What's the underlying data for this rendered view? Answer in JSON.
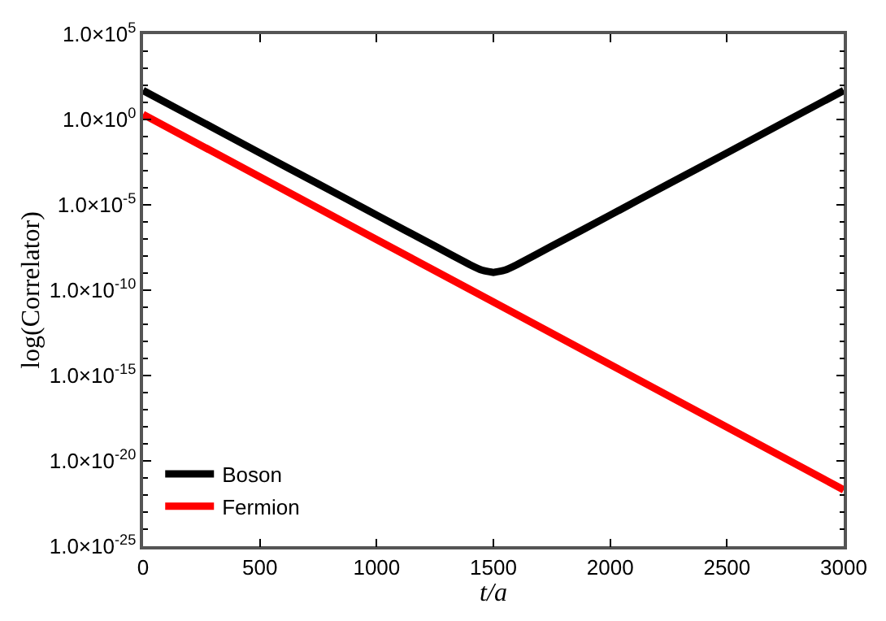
{
  "chart_data": {
    "type": "line",
    "xlabel": "t/a",
    "ylabel": "log(Correlator)",
    "log": "y",
    "legend": "bottom left",
    "xlim": [
      0,
      3000
    ],
    "xticks": [
      0,
      500,
      1000,
      1500,
      2000,
      2500,
      3000
    ],
    "ylim": [
      1e-25,
      100000.0
    ],
    "yticks": [
      {
        "value": 1e-25,
        "label": "1.0×10$^{-25}$"
      },
      {
        "value": 1e-20,
        "label": "1.0×10$^{-20}$"
      },
      {
        "value": 1e-15,
        "label": "1.0×10$^{-15}$"
      },
      {
        "value": 1e-10,
        "label": "1.0×10$^{-10}$"
      },
      {
        "value": 1e-05,
        "label": "1.0×10$^{-5}$"
      },
      {
        "value": 1,
        "label": "1.0×10$^{0}$"
      },
      {
        "value": 100000.0,
        "label": "1.0×10$^{5}$"
      }
    ],
    "series": [
      {
        "name": "Boson",
        "color": "#000000",
        "x": [
          0,
          250,
          500,
          750,
          1000,
          1250,
          1400,
          1450,
          1500,
          1550,
          1600,
          1750,
          2000,
          2250,
          2500,
          2750,
          3000
        ],
        "values": [
          50,
          0.75,
          0.011,
          0.00017,
          2.5e-06,
          3.8e-08,
          3.1e-09,
          1.5e-09,
          1.1e-09,
          1.5e-09,
          3.1e-09,
          3.8e-08,
          2.5e-06,
          0.00017,
          0.011,
          0.75,
          50
        ]
      },
      {
        "name": "Fermion",
        "color": "#ff0000",
        "x": [
          0,
          1000,
          2000,
          3000
        ],
        "values": [
          2,
          9.3e-08,
          4.4e-15,
          2e-22
        ]
      }
    ]
  }
}
